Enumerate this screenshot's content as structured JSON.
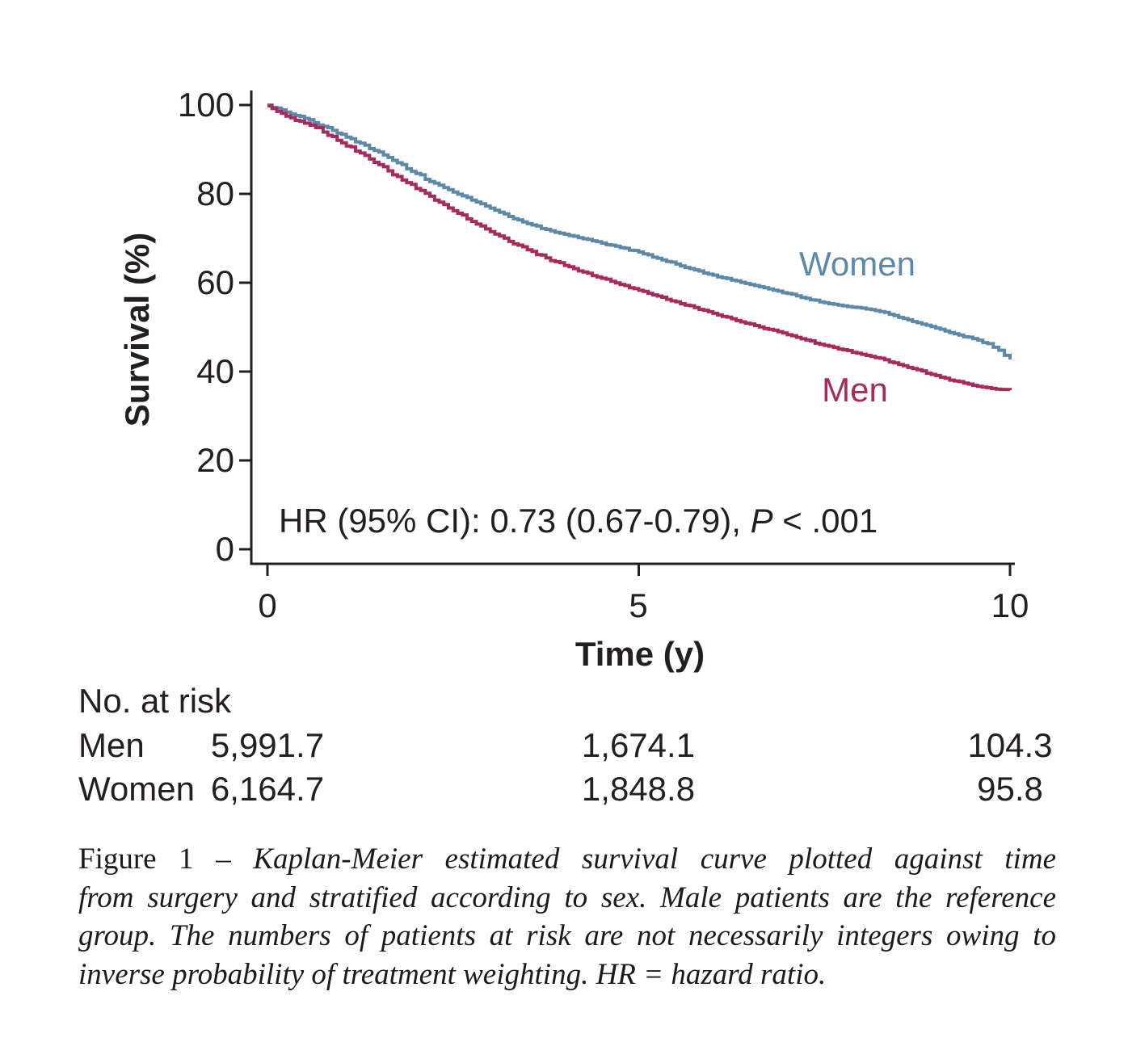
{
  "chart_data": {
    "type": "line",
    "subtype": "kaplan-meier-step",
    "title": "",
    "xlabel": "Time (y)",
    "ylabel": "Survival (%)",
    "xlim": [
      0,
      10
    ],
    "ylim": [
      0,
      100
    ],
    "grid": false,
    "x_ticks": [
      "0",
      "5",
      "10"
    ],
    "x_tick_values": [
      0,
      5,
      10
    ],
    "y_ticks": [
      "100",
      "80",
      "60",
      "40",
      "20",
      "0"
    ],
    "y_tick_values": [
      100,
      80,
      60,
      40,
      20,
      0
    ],
    "annotation": {
      "text_before_p": "HR (95% CI): 0.73 (0.67-0.79), ",
      "p_symbol": "P",
      "text_after_p": " < .001"
    },
    "series": [
      {
        "name": "Women",
        "color": "#5d89a9",
        "label_position": "above-curve-right",
        "points": [
          [
            0,
            100
          ],
          [
            0.25,
            98.4
          ],
          [
            0.5,
            97.0
          ],
          [
            0.75,
            95.2
          ],
          [
            1,
            93.4
          ],
          [
            1.25,
            91.4
          ],
          [
            1.5,
            89.4
          ],
          [
            1.75,
            87.0
          ],
          [
            2,
            84.6
          ],
          [
            2.25,
            82.4
          ],
          [
            2.5,
            80.4
          ],
          [
            2.75,
            78.6
          ],
          [
            3,
            76.8
          ],
          [
            3.25,
            74.9
          ],
          [
            3.5,
            73.3
          ],
          [
            3.75,
            72.0
          ],
          [
            4,
            70.9
          ],
          [
            4.25,
            69.9
          ],
          [
            4.5,
            68.9
          ],
          [
            4.75,
            67.9
          ],
          [
            5,
            66.9
          ],
          [
            5.25,
            65.5
          ],
          [
            5.5,
            64.2
          ],
          [
            5.75,
            62.9
          ],
          [
            6,
            61.7
          ],
          [
            6.25,
            60.6
          ],
          [
            6.5,
            59.6
          ],
          [
            6.75,
            58.6
          ],
          [
            7,
            57.6
          ],
          [
            7.25,
            56.5
          ],
          [
            7.5,
            55.5
          ],
          [
            7.75,
            54.8
          ],
          [
            8,
            54.3
          ],
          [
            8.25,
            53.5
          ],
          [
            8.5,
            52.2
          ],
          [
            8.75,
            51.0
          ],
          [
            9,
            49.8
          ],
          [
            9.25,
            48.5
          ],
          [
            9.5,
            47.4
          ],
          [
            9.7,
            46.3
          ],
          [
            9.85,
            44.8
          ],
          [
            10,
            42.7
          ]
        ]
      },
      {
        "name": "Men",
        "color": "#a72a5c",
        "label_position": "below-curve-right",
        "points": [
          [
            0,
            99.8
          ],
          [
            0.25,
            97.5
          ],
          [
            0.5,
            95.9
          ],
          [
            0.65,
            94.9
          ],
          [
            0.75,
            93.9
          ],
          [
            1,
            91.5
          ],
          [
            1.25,
            89.2
          ],
          [
            1.5,
            86.6
          ],
          [
            1.75,
            83.9
          ],
          [
            2,
            81.2
          ],
          [
            2.25,
            78.6
          ],
          [
            2.5,
            76.2
          ],
          [
            2.75,
            73.8
          ],
          [
            3,
            71.5
          ],
          [
            3.25,
            69.3
          ],
          [
            3.5,
            67.4
          ],
          [
            3.75,
            65.6
          ],
          [
            4,
            63.9
          ],
          [
            4.25,
            62.4
          ],
          [
            4.5,
            61.0
          ],
          [
            4.75,
            59.6
          ],
          [
            5,
            58.3
          ],
          [
            5.25,
            57.0
          ],
          [
            5.5,
            55.7
          ],
          [
            5.75,
            54.4
          ],
          [
            6,
            53.1
          ],
          [
            6.25,
            51.9
          ],
          [
            6.5,
            50.7
          ],
          [
            6.75,
            49.5
          ],
          [
            7,
            48.3
          ],
          [
            7.25,
            47.1
          ],
          [
            7.5,
            45.9
          ],
          [
            7.75,
            44.9
          ],
          [
            8,
            43.9
          ],
          [
            8.25,
            43.0
          ],
          [
            8.5,
            41.6
          ],
          [
            8.75,
            40.4
          ],
          [
            9,
            39.1
          ],
          [
            9.25,
            37.9
          ],
          [
            9.5,
            36.9
          ],
          [
            9.75,
            36.2
          ],
          [
            10,
            35.8
          ]
        ]
      }
    ]
  },
  "risk_table": {
    "header": "No. at risk",
    "time_points": [
      "0",
      "5",
      "10"
    ],
    "rows": [
      {
        "label": "Men",
        "values": [
          "5,991.7",
          "1,674.1",
          "104.3"
        ]
      },
      {
        "label": "Women",
        "values": [
          "6,164.7",
          "1,848.8",
          "95.8"
        ]
      }
    ]
  },
  "caption": {
    "line1_roman": "Figure 1 –",
    "line1_italic": " Kaplan-Meier estimated survival curve plotted against time",
    "lines": [
      "from surgery and stratified according to sex. Male patients are the reference",
      "group. The numbers of patients at risk are not necessarily integers owing to",
      "inverse probability of treatment weighting. HR = hazard ratio."
    ]
  },
  "colors": {
    "women_line": "#5d89a9",
    "men_line": "#a72a5c",
    "axis": "#231f20",
    "background": "#ffffff"
  }
}
